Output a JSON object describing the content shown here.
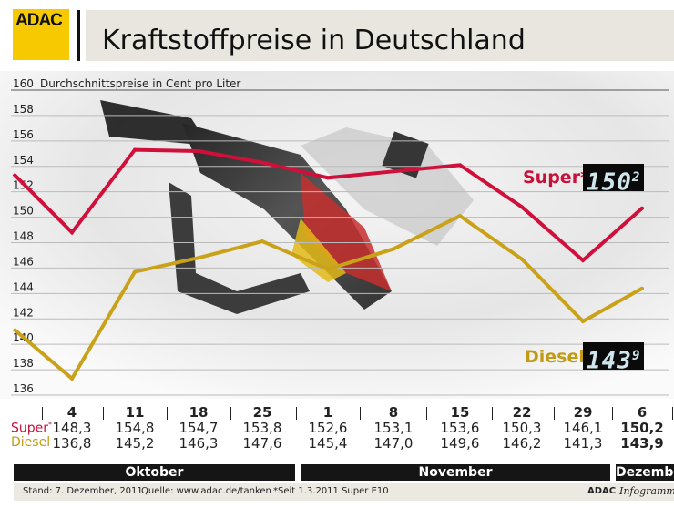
{
  "header": {
    "logo": "ADAC",
    "title": "Kraftstoffpreise in Deutschland"
  },
  "chart_data": {
    "type": "line",
    "subtitle": "Durchschnittspreise in Cent pro Liter",
    "ylim": [
      136,
      160
    ],
    "yticks": [
      160,
      158,
      156,
      154,
      152,
      150,
      148,
      146,
      144,
      142,
      140,
      138,
      136
    ],
    "grid": true,
    "categories": [
      "4",
      "11",
      "18",
      "25",
      "1",
      "8",
      "15",
      "22",
      "29",
      "6"
    ],
    "months": [
      "Oktober",
      "November",
      "Dezember"
    ],
    "lead_in": {
      "Super": 152.9,
      "Diesel": 140.7
    },
    "series": [
      {
        "name": "Super*",
        "color": "#d0103a",
        "values": [
          148.3,
          154.8,
          154.7,
          153.8,
          152.6,
          153.1,
          153.6,
          150.3,
          146.1,
          150.2
        ],
        "labels": [
          "148,3",
          "154,8",
          "154,7",
          "153,8",
          "152,6",
          "153,1",
          "153,6",
          "150,3",
          "146,1",
          "150,2"
        ]
      },
      {
        "name": "Diesel",
        "color": "#c9a21a",
        "values": [
          136.8,
          145.2,
          146.3,
          147.6,
          145.4,
          147.0,
          149.6,
          146.2,
          141.3,
          143.9
        ],
        "labels": [
          "136,8",
          "145,2",
          "146,3",
          "147,6",
          "145,4",
          "147,0",
          "149,6",
          "146,2",
          "141,3",
          "143,9"
        ]
      }
    ],
    "current": {
      "super_main": "150",
      "super_dec": "2",
      "diesel_main": "143",
      "diesel_dec": "9"
    }
  },
  "table": {
    "super_label": "Super",
    "super_star": "*",
    "diesel_label": "Diesel"
  },
  "footer": {
    "stand": "Stand: 7. Dezember, 2011",
    "quelle": "Quelle: www.adac.de/tanken",
    "note": "*Seit 1.3.2011 Super E10",
    "brand": "ADAC",
    "brand_italic": "Infogramm"
  }
}
